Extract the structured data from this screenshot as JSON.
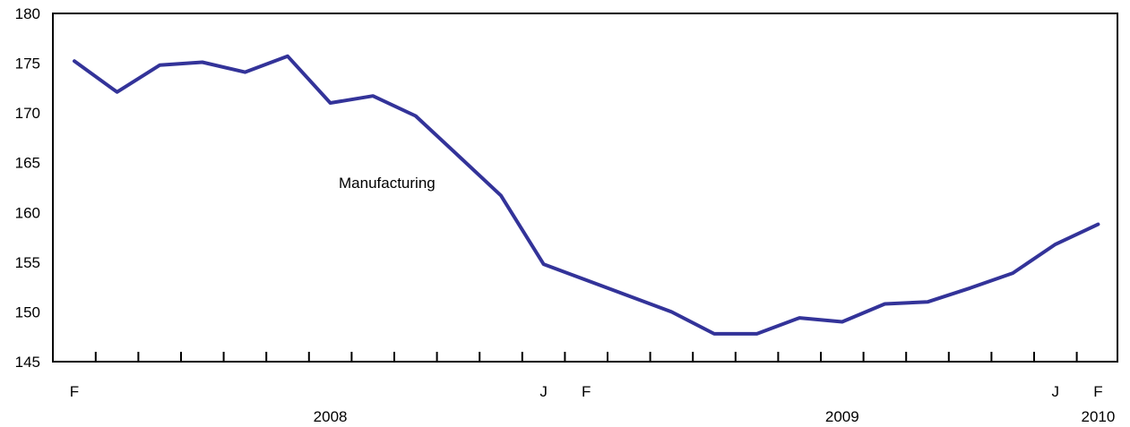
{
  "chart_data": {
    "type": "line",
    "title": "",
    "xlabel": "",
    "ylabel": "",
    "ylim": [
      145,
      180
    ],
    "yticks": [
      145,
      150,
      155,
      160,
      165,
      170,
      175,
      180
    ],
    "grid": false,
    "legend": "none",
    "annotation": "Manufacturing",
    "x": [
      "2008-02",
      "2008-03",
      "2008-04",
      "2008-05",
      "2008-06",
      "2008-07",
      "2008-08",
      "2008-09",
      "2008-10",
      "2008-11",
      "2008-12",
      "2009-01",
      "2009-02",
      "2009-03",
      "2009-04",
      "2009-05",
      "2009-06",
      "2009-07",
      "2009-08",
      "2009-09",
      "2009-10",
      "2009-11",
      "2009-12",
      "2010-01",
      "2010-02"
    ],
    "x_tick_labels": [
      {
        "index": 0,
        "label": "F"
      },
      {
        "index": 11,
        "label": "J"
      },
      {
        "index": 12,
        "label": "F"
      },
      {
        "index": 23,
        "label": "J"
      },
      {
        "index": 24,
        "label": "F"
      }
    ],
    "year_labels": [
      {
        "index": 6,
        "label": "2008"
      },
      {
        "index": 18,
        "label": "2009"
      },
      {
        "index": 24,
        "label": "2010"
      }
    ],
    "series": [
      {
        "color": "#333399",
        "values": [
          175.2,
          172.1,
          174.8,
          175.1,
          174.1,
          175.7,
          171.0,
          171.7,
          169.7,
          165.7,
          161.7,
          154.8,
          153.2,
          151.6,
          150.0,
          147.8,
          147.8,
          149.4,
          149.0,
          150.8,
          151.0,
          152.4,
          153.9,
          156.8,
          158.8
        ]
      }
    ]
  }
}
